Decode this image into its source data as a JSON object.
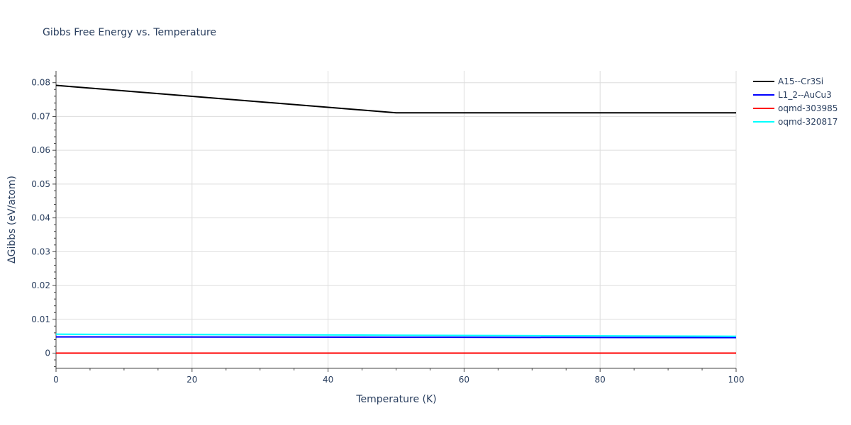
{
  "chart_data": {
    "type": "line",
    "title": "Gibbs Free Energy vs. Temperature",
    "xlabel": "Temperature (K)",
    "ylabel": "ΔGibbs (eV/atom)",
    "xlim": [
      0,
      100
    ],
    "ylim": [
      -0.0045,
      0.0835
    ],
    "x_ticks": [
      0,
      20,
      40,
      60,
      80,
      100
    ],
    "y_ticks": [
      0,
      0.01,
      0.02,
      0.03,
      0.04,
      0.05,
      0.06,
      0.07,
      0.08
    ],
    "y_tick_labels": [
      "0",
      "0.01",
      "0.02",
      "0.03",
      "0.04",
      "0.05",
      "0.06",
      "0.07",
      "0.08"
    ],
    "grid": true,
    "legend_position": "top-right",
    "series": [
      {
        "name": "A15--Cr3Si",
        "color": "#000000",
        "x": [
          0,
          50,
          100
        ],
        "y": [
          0.0792,
          0.0711,
          0.0711
        ]
      },
      {
        "name": "L1_2--AuCu3",
        "color": "#0000ff",
        "x": [
          0,
          50,
          100
        ],
        "y": [
          0.0048,
          0.0047,
          0.0046
        ]
      },
      {
        "name": "oqmd-303985",
        "color": "#ff0000",
        "x": [
          0,
          100
        ],
        "y": [
          0,
          0
        ]
      },
      {
        "name": "oqmd-320817",
        "color": "#00ffff",
        "x": [
          0,
          50,
          100
        ],
        "y": [
          0.0056,
          0.0053,
          0.005
        ]
      }
    ]
  }
}
